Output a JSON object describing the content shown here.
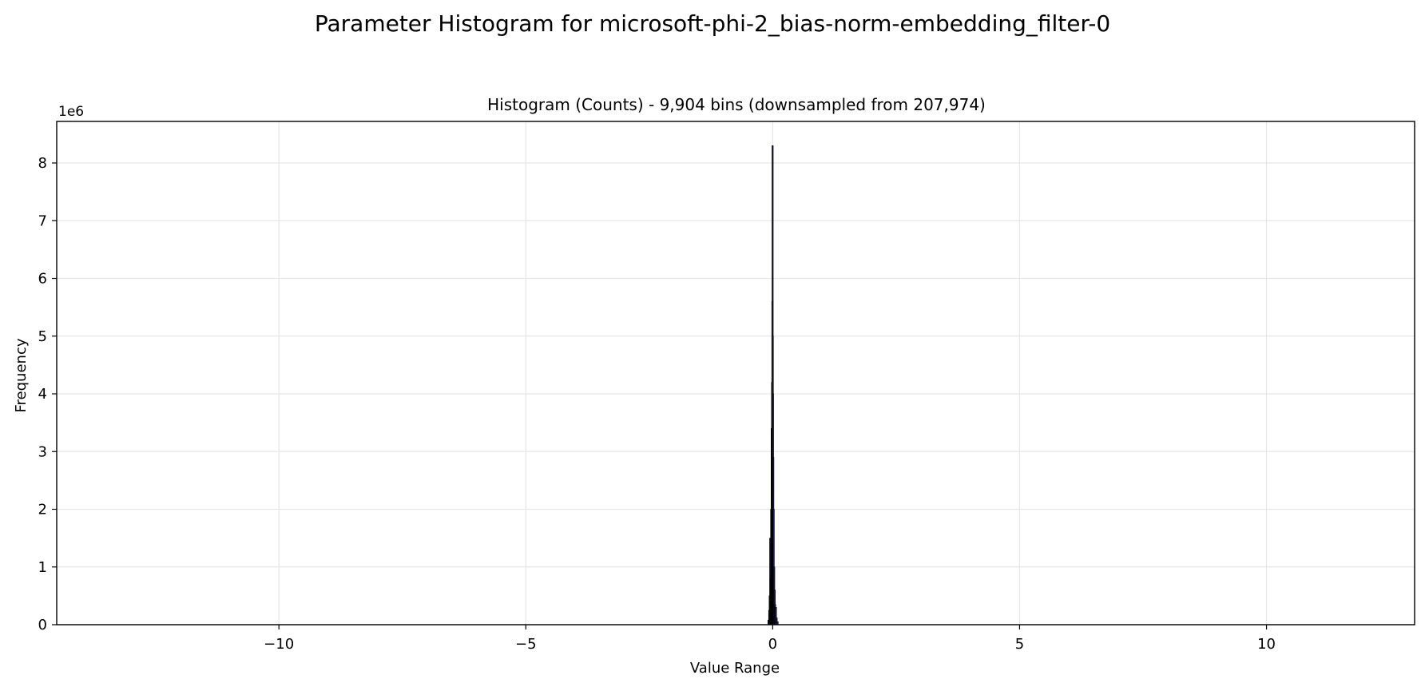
{
  "figure": {
    "suptitle": "Parameter Histogram for microsoft-phi-2_bias-norm-embedding_filter-0"
  },
  "chart_data": {
    "type": "bar",
    "title": "Histogram (Counts) - 9,904 bins (downsampled from 207,974)",
    "xlabel": "Value Range",
    "ylabel": "Frequency",
    "y_offset_label": "1e6",
    "xlim": [
      -14.5,
      13.0
    ],
    "ylim": [
      0,
      8.72
    ],
    "y_scale_factor": 1000000,
    "x_ticks": [
      {
        "value": -10,
        "label": "−10"
      },
      {
        "value": -5,
        "label": "−5"
      },
      {
        "value": 0,
        "label": "0"
      },
      {
        "value": 5,
        "label": "5"
      },
      {
        "value": 10,
        "label": "10"
      }
    ],
    "y_ticks": [
      {
        "value": 0,
        "label": "0"
      },
      {
        "value": 1,
        "label": "1"
      },
      {
        "value": 2,
        "label": "2"
      },
      {
        "value": 3,
        "label": "3"
      },
      {
        "value": 4,
        "label": "4"
      },
      {
        "value": 5,
        "label": "5"
      },
      {
        "value": 6,
        "label": "6"
      },
      {
        "value": 7,
        "label": "7"
      },
      {
        "value": 8,
        "label": "8"
      }
    ],
    "grid": true,
    "bin_width": 0.0028,
    "bars": [
      {
        "x": -0.085,
        "y": 0.08
      },
      {
        "x": -0.07,
        "y": 0.25
      },
      {
        "x": -0.06,
        "y": 0.5
      },
      {
        "x": -0.05,
        "y": 1.5
      },
      {
        "x": -0.04,
        "y": 0.8
      },
      {
        "x": -0.03,
        "y": 2.0
      },
      {
        "x": -0.02,
        "y": 3.4
      },
      {
        "x": -0.012,
        "y": 4.2
      },
      {
        "x": -0.006,
        "y": 5.6
      },
      {
        "x": -0.002,
        "y": 8.3
      },
      {
        "x": 0.002,
        "y": 5.0
      },
      {
        "x": 0.006,
        "y": 4.0
      },
      {
        "x": 0.012,
        "y": 2.9
      },
      {
        "x": 0.02,
        "y": 2.0
      },
      {
        "x": 0.03,
        "y": 1.0
      },
      {
        "x": 0.04,
        "y": 0.6
      },
      {
        "x": 0.05,
        "y": 0.35
      },
      {
        "x": 0.065,
        "y": 0.3
      },
      {
        "x": 0.08,
        "y": 0.12
      },
      {
        "x": 0.1,
        "y": 0.05
      }
    ],
    "colors": {
      "bar_fill": "#1f1f5a",
      "bar_edge": "#000000",
      "grid": "#e6e6e6"
    }
  }
}
